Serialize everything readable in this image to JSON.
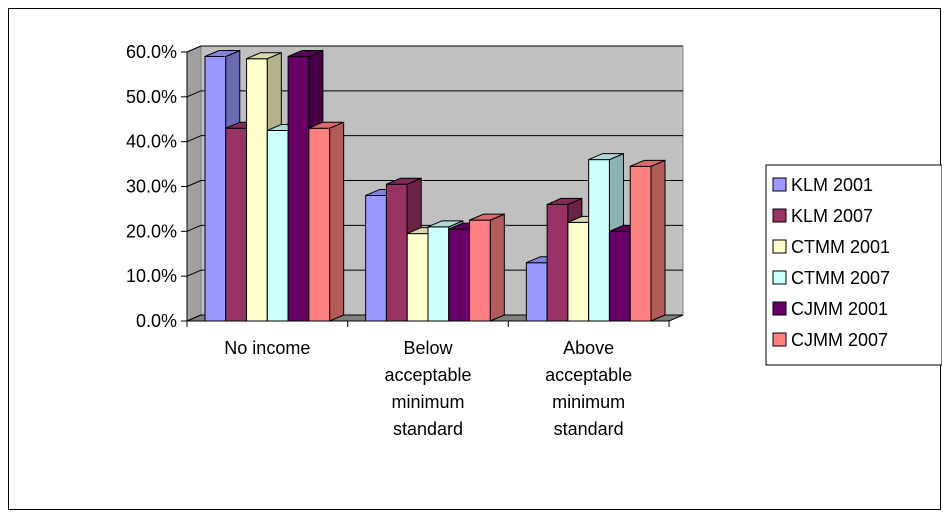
{
  "chart_data": {
    "type": "bar",
    "categories": [
      [
        "No income"
      ],
      [
        "Below",
        "acceptable",
        "minimum",
        "standard"
      ],
      [
        "Above",
        "acceptable",
        "minimum",
        "standard"
      ]
    ],
    "series": [
      {
        "name": "KLM 2001",
        "values": [
          59.0,
          28.0,
          13.0
        ],
        "color": "#9999FF"
      },
      {
        "name": "KLM 2007",
        "values": [
          43.0,
          30.5,
          26.0
        ],
        "color": "#993366"
      },
      {
        "name": "CTMM 2001",
        "values": [
          58.5,
          19.5,
          22.0
        ],
        "color": "#FFFFCC"
      },
      {
        "name": "CTMM 2007",
        "values": [
          42.5,
          21.0,
          36.0
        ],
        "color": "#CCFFFF"
      },
      {
        "name": "CJMM 2001",
        "values": [
          59.0,
          20.5,
          20.0
        ],
        "color": "#660066"
      },
      {
        "name": "CJMM 2007",
        "values": [
          43.0,
          22.5,
          34.5
        ],
        "color": "#FF8080"
      }
    ],
    "ylim": [
      0,
      60
    ],
    "yticks": [
      "0.0%",
      "10.0%",
      "20.0%",
      "30.0%",
      "40.0%",
      "50.0%",
      "60.0%"
    ],
    "grid": true,
    "legend_position": "right",
    "wall_color": "#C0C0C0",
    "floor_color": "#808080"
  }
}
